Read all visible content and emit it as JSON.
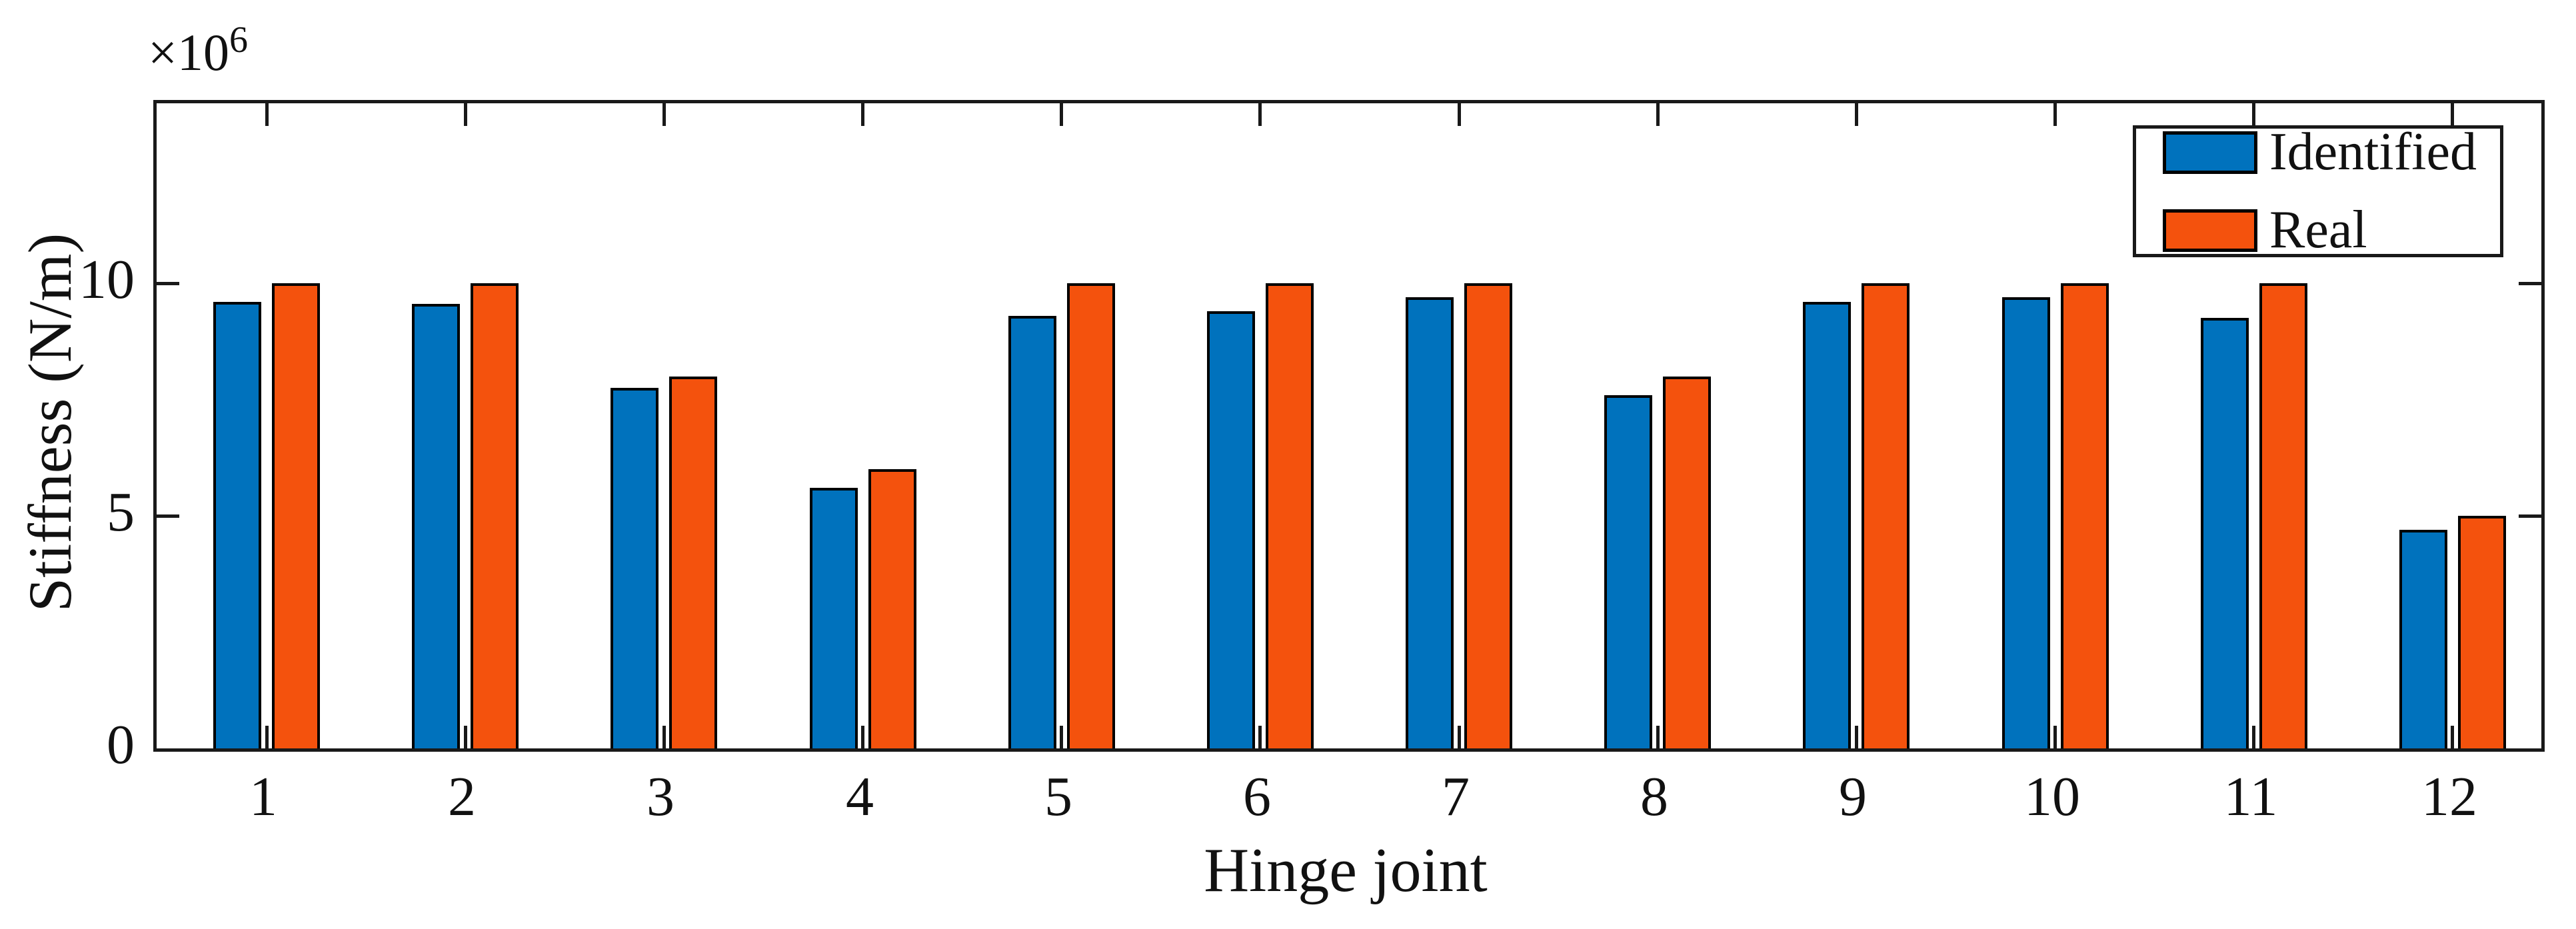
{
  "figure": {
    "background": "#ffffff",
    "axis_color": "#191919",
    "bar_edge_color": "#000000"
  },
  "chart_data": {
    "type": "bar",
    "title": "",
    "xlabel": "Hinge joint",
    "ylabel": "Stiffness (N/m)",
    "y_multiplier_base": "×10",
    "y_multiplier_exponent": "6",
    "values_unit": "×10^6 N/m",
    "categories": [
      "1",
      "2",
      "3",
      "4",
      "5",
      "6",
      "7",
      "8",
      "9",
      "10",
      "11",
      "12"
    ],
    "series": [
      {
        "name": "Identified",
        "color": "#0072BD",
        "values": [
          9.6,
          9.55,
          7.75,
          5.6,
          9.3,
          9.4,
          9.7,
          7.6,
          9.6,
          9.7,
          9.25,
          4.7
        ]
      },
      {
        "name": "Real",
        "color": "#F4520D",
        "values": [
          10,
          10,
          8,
          6,
          10,
          10,
          10,
          8,
          10,
          10,
          10,
          5
        ]
      }
    ],
    "yticks": [
      0,
      5,
      10
    ],
    "ylim": [
      0,
      13.87
    ],
    "grid": false,
    "legend_position": "top-right"
  }
}
